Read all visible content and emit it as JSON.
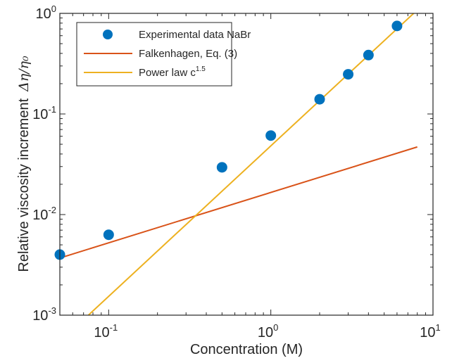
{
  "chart_data": {
    "type": "scatter",
    "xscale": "log",
    "yscale": "log",
    "xlim": [
      0.05,
      10
    ],
    "ylim": [
      0.001,
      1
    ],
    "xlabel": "Concentration (M)",
    "ylabel": "Relative viscosity increment",
    "ylabel_symbol": "Δη/η₀",
    "xticks": [
      {
        "value": 0.1,
        "base": "10",
        "exp": "-1"
      },
      {
        "value": 1,
        "base": "10",
        "exp": "0"
      },
      {
        "value": 10,
        "base": "10",
        "exp": "1"
      }
    ],
    "yticks": [
      {
        "value": 0.001,
        "base": "10",
        "exp": "-3"
      },
      {
        "value": 0.01,
        "base": "10",
        "exp": "-2"
      },
      {
        "value": 0.1,
        "base": "10",
        "exp": "-1"
      },
      {
        "value": 1,
        "base": "10",
        "exp": "0"
      }
    ],
    "series": [
      {
        "name": "Experimental data NaBr",
        "kind": "markers",
        "color": "#0072BD",
        "x": [
          0.05,
          0.1,
          0.5,
          1,
          2,
          3,
          4,
          6
        ],
        "y": [
          0.004,
          0.0063,
          0.0295,
          0.061,
          0.14,
          0.248,
          0.385,
          0.75
        ]
      },
      {
        "name": "Falkenhagen, Eq. (3)",
        "kind": "line",
        "color": "#D95319",
        "x": [
          0.05,
          8
        ],
        "y": [
          0.0037,
          0.047
        ]
      },
      {
        "name": "Power law c",
        "name_sup": "1.5",
        "kind": "line",
        "color": "#EDB120",
        "x": [
          0.075,
          8
        ],
        "y": [
          0.001,
          1.08
        ]
      }
    ],
    "legend_position": "top-left"
  }
}
